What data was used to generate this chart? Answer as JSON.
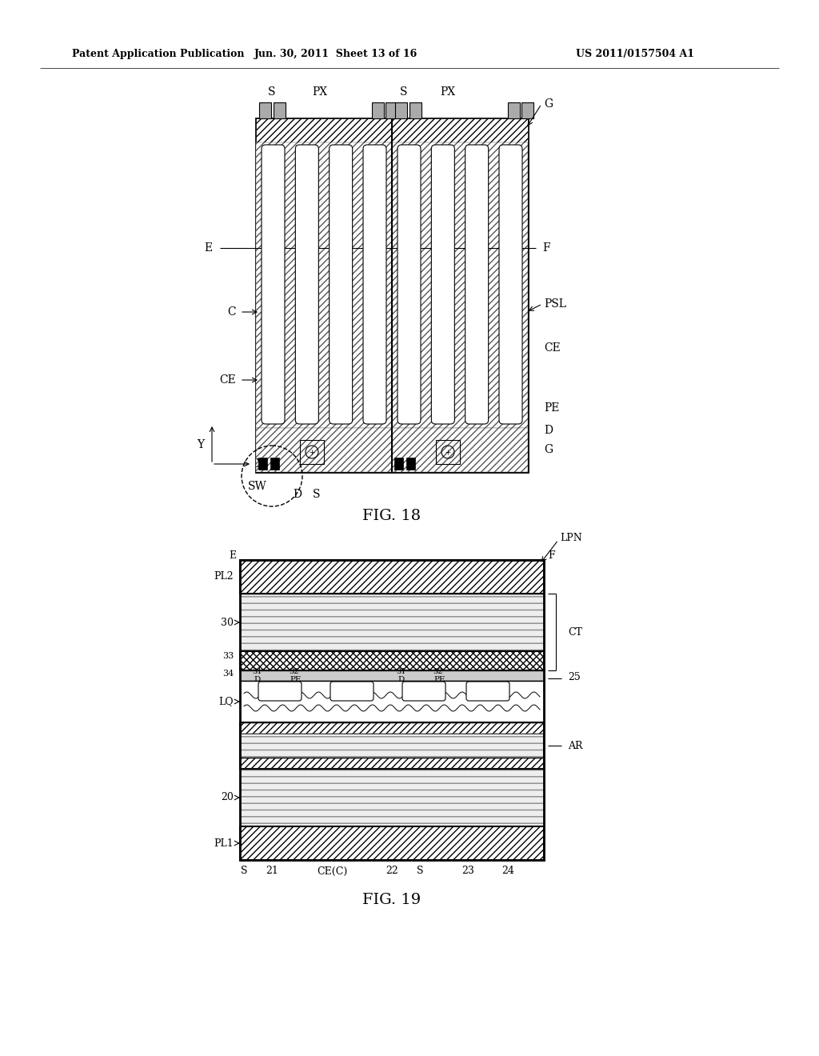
{
  "header_left": "Patent Application Publication",
  "header_center": "Jun. 30, 2011  Sheet 13 of 16",
  "header_right": "US 2011/0157504 A1",
  "fig18_title": "FIG. 18",
  "fig19_title": "FIG. 19",
  "bg_color": "#ffffff"
}
